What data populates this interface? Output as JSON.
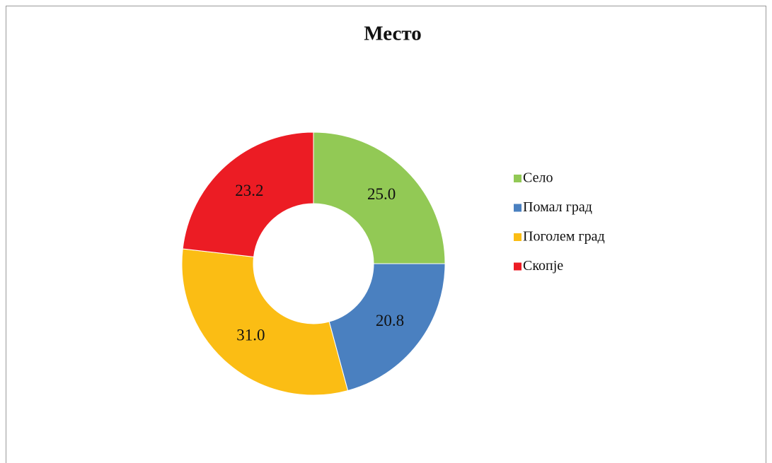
{
  "chart_data": {
    "type": "donut",
    "title": "Место",
    "categories": [
      "Село",
      "Помал град",
      "Поголем град",
      "Скопје"
    ],
    "values": [
      25.0,
      20.8,
      31.0,
      23.2
    ],
    "value_labels": [
      "25.0",
      "20.8",
      "31.0",
      "23.2"
    ],
    "colors": [
      "#92c955",
      "#4a80c0",
      "#fbbd14",
      "#ec1c24"
    ],
    "legend": "right"
  }
}
